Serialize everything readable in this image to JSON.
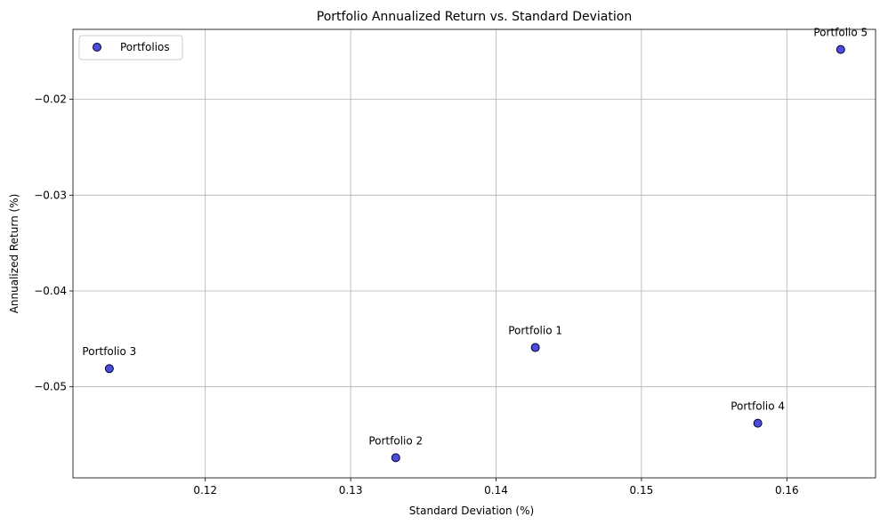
{
  "chart_data": {
    "type": "scatter",
    "title": "Portfolio Annualized Return vs. Standard Deviation",
    "xlabel": "Standard Deviation (%)",
    "ylabel": "Annualized Return (%)",
    "xlim": [
      0.1109,
      0.1661
    ],
    "ylim": [
      -0.0595,
      -0.0127
    ],
    "xticks": [
      0.12,
      0.13,
      0.14,
      0.15,
      0.16
    ],
    "xtick_labels": [
      "0.12",
      "0.13",
      "0.14",
      "0.15",
      "0.16"
    ],
    "yticks": [
      -0.05,
      -0.04,
      -0.03,
      -0.02
    ],
    "ytick_labels": [
      "−0.05",
      "−0.04",
      "−0.03",
      "−0.02"
    ],
    "grid": true,
    "legend": {
      "position": "upper-left",
      "entries": [
        "Portfolios"
      ]
    },
    "series": [
      {
        "name": "Portfolios",
        "color": "#0000cc",
        "points": [
          {
            "label": "Portfolio 1",
            "x": 0.1427,
            "y": -0.0459
          },
          {
            "label": "Portfolio 2",
            "x": 0.1331,
            "y": -0.0574
          },
          {
            "label": "Portfolio 3",
            "x": 0.1134,
            "y": -0.0481
          },
          {
            "label": "Portfolio 4",
            "x": 0.158,
            "y": -0.0538
          },
          {
            "label": "Portfolio 5",
            "x": 0.1637,
            "y": -0.0148
          }
        ]
      }
    ]
  }
}
